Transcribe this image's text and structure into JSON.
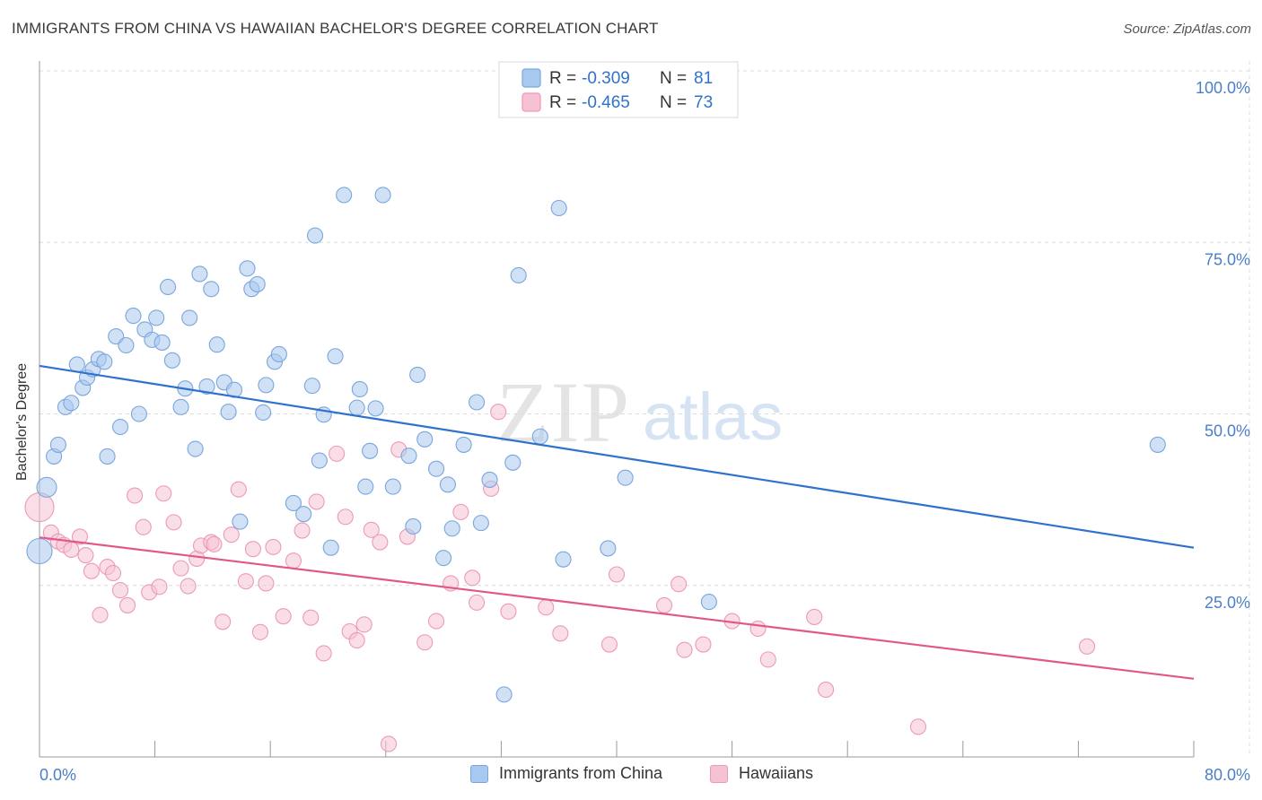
{
  "title": "IMMIGRANTS FROM CHINA VS HAWAIIAN BACHELOR'S DEGREE CORRELATION CHART",
  "source": "Source: ZipAtlas.com",
  "watermark": {
    "zip": "ZIP",
    "atlas": "atlas"
  },
  "colors": {
    "blue_fill": "#a9c8ef",
    "blue_stroke": "#7aa6dd",
    "blue_line": "#2f72cc",
    "pink_fill": "#f6c2d3",
    "pink_stroke": "#ec9ab6",
    "pink_line": "#e0588a",
    "axis_text": "#4a7fc8",
    "grid": "#dcdcdc"
  },
  "legend_top": {
    "rows": [
      {
        "r_label": "R = ",
        "r_value": "-0.309",
        "n_label": "N = ",
        "n_value": "81"
      },
      {
        "r_label": "R = ",
        "r_value": "-0.465",
        "n_label": "N = ",
        "n_value": "73"
      }
    ]
  },
  "chart_data": {
    "type": "scatter",
    "title": "IMMIGRANTS FROM CHINA VS HAWAIIAN BACHELOR'S DEGREE CORRELATION CHART",
    "xlabel": "",
    "ylabel": "Bachelor's Degree",
    "xlim": [
      0,
      80
    ],
    "ylim": [
      0,
      100
    ],
    "x_tick_labels": [
      "0.0%",
      "80.0%"
    ],
    "y_tick_labels": [
      "100.0%",
      "75.0%",
      "50.0%",
      "25.0%"
    ],
    "y_ticks": [
      100,
      75,
      50,
      25
    ],
    "grid": true,
    "legend_position": "top-center and bottom",
    "series": [
      {
        "name": "Immigrants from China",
        "color": "blue",
        "trend": {
          "x": [
            0,
            80
          ],
          "y": [
            57.0,
            30.5
          ]
        },
        "points": [
          [
            0.5,
            39.3
          ],
          [
            0,
            30
          ],
          [
            1,
            43.8
          ],
          [
            1.3,
            45.5
          ],
          [
            1.8,
            51
          ],
          [
            2.2,
            51.6
          ],
          [
            2.6,
            57.2
          ],
          [
            3,
            53.8
          ],
          [
            3.3,
            55.3
          ],
          [
            3.7,
            56.5
          ],
          [
            4.1,
            58
          ],
          [
            4.5,
            57.6
          ],
          [
            4.7,
            43.8
          ],
          [
            5.3,
            61.3
          ],
          [
            5.6,
            48.1
          ],
          [
            6,
            60
          ],
          [
            6.5,
            64.3
          ],
          [
            6.9,
            50
          ],
          [
            7.3,
            62.3
          ],
          [
            7.8,
            60.8
          ],
          [
            8.1,
            64
          ],
          [
            8.5,
            60.4
          ],
          [
            8.9,
            68.5
          ],
          [
            9.2,
            57.8
          ],
          [
            9.8,
            51
          ],
          [
            10.1,
            53.7
          ],
          [
            10.4,
            64
          ],
          [
            10.8,
            44.9
          ],
          [
            11.1,
            70.4
          ],
          [
            11.6,
            54
          ],
          [
            11.9,
            68.2
          ],
          [
            12.3,
            60.1
          ],
          [
            12.8,
            54.6
          ],
          [
            13.1,
            50.3
          ],
          [
            13.5,
            53.5
          ],
          [
            13.9,
            34.3
          ],
          [
            14.4,
            71.2
          ],
          [
            14.7,
            68.2
          ],
          [
            15.1,
            68.9
          ],
          [
            15.5,
            50.2
          ],
          [
            15.7,
            54.2
          ],
          [
            16.3,
            57.6
          ],
          [
            16.6,
            58.7
          ],
          [
            17.6,
            37
          ],
          [
            18.3,
            35.4
          ],
          [
            18.9,
            54.1
          ],
          [
            19.1,
            76
          ],
          [
            19.4,
            43.2
          ],
          [
            19.7,
            49.9
          ],
          [
            20.2,
            30.5
          ],
          [
            20.5,
            58.4
          ],
          [
            21.1,
            81.9
          ],
          [
            22,
            50.9
          ],
          [
            22.2,
            53.6
          ],
          [
            22.6,
            39.4
          ],
          [
            22.9,
            44.6
          ],
          [
            23.3,
            50.8
          ],
          [
            23.8,
            81.9
          ],
          [
            24.5,
            39.4
          ],
          [
            25.6,
            43.9
          ],
          [
            25.9,
            33.6
          ],
          [
            26.2,
            55.7
          ],
          [
            26.7,
            46.3
          ],
          [
            27.5,
            42
          ],
          [
            28,
            29
          ],
          [
            28.3,
            39.7
          ],
          [
            28.6,
            33.3
          ],
          [
            29.4,
            45.5
          ],
          [
            30.3,
            51.7
          ],
          [
            30.6,
            34.1
          ],
          [
            31.2,
            40.4
          ],
          [
            32.2,
            9.1
          ],
          [
            32.8,
            42.9
          ],
          [
            33.2,
            70.2
          ],
          [
            34.7,
            46.7
          ],
          [
            36,
            80
          ],
          [
            36.3,
            28.8
          ],
          [
            39.4,
            30.4
          ],
          [
            40.6,
            40.7
          ],
          [
            46.4,
            22.6
          ],
          [
            77.5,
            45.5
          ]
        ],
        "sizes": {
          "0": 11,
          "1": 14
        }
      },
      {
        "name": "Hawaiians",
        "color": "pink",
        "trend": {
          "x": [
            0,
            80
          ],
          "y": [
            32.0,
            11.4
          ]
        },
        "points": [
          [
            0,
            36.4
          ],
          [
            0.8,
            32.7
          ],
          [
            1.3,
            31.4
          ],
          [
            1.7,
            30.9
          ],
          [
            2.2,
            30.2
          ],
          [
            2.8,
            32.1
          ],
          [
            3.2,
            29.4
          ],
          [
            3.6,
            27.1
          ],
          [
            4.2,
            20.7
          ],
          [
            4.7,
            27.7
          ],
          [
            5.1,
            26.8
          ],
          [
            5.6,
            24.3
          ],
          [
            6.1,
            22.1
          ],
          [
            6.6,
            38.1
          ],
          [
            7.2,
            33.5
          ],
          [
            7.6,
            24
          ],
          [
            8.3,
            24.8
          ],
          [
            8.6,
            38.4
          ],
          [
            9.3,
            34.2
          ],
          [
            9.8,
            27.5
          ],
          [
            10.3,
            24.9
          ],
          [
            10.9,
            28.9
          ],
          [
            11.2,
            30.8
          ],
          [
            11.9,
            31.3
          ],
          [
            12.1,
            31
          ],
          [
            12.7,
            19.7
          ],
          [
            13.3,
            32.4
          ],
          [
            13.8,
            39
          ],
          [
            14.3,
            25.6
          ],
          [
            14.8,
            30.3
          ],
          [
            15.3,
            18.2
          ],
          [
            15.7,
            25.3
          ],
          [
            16.2,
            30.6
          ],
          [
            16.9,
            20.5
          ],
          [
            17.6,
            28.6
          ],
          [
            18.2,
            33
          ],
          [
            18.8,
            20.3
          ],
          [
            19.2,
            37.2
          ],
          [
            19.7,
            15.1
          ],
          [
            20.6,
            44.2
          ],
          [
            21.2,
            35
          ],
          [
            21.5,
            18.3
          ],
          [
            22,
            17
          ],
          [
            22.5,
            19.3
          ],
          [
            23,
            33.1
          ],
          [
            23.6,
            31.3
          ],
          [
            24.2,
            1.9
          ],
          [
            24.9,
            44.8
          ],
          [
            25.5,
            32.1
          ],
          [
            26.7,
            16.7
          ],
          [
            27.5,
            19.8
          ],
          [
            28.5,
            25.3
          ],
          [
            29.2,
            35.7
          ],
          [
            30,
            26.1
          ],
          [
            30.3,
            22.5
          ],
          [
            31.3,
            39.1
          ],
          [
            31.8,
            50.3
          ],
          [
            32.5,
            21.2
          ],
          [
            35.1,
            21.8
          ],
          [
            36.1,
            18
          ],
          [
            39.5,
            16.4
          ],
          [
            40,
            26.6
          ],
          [
            43.3,
            22.1
          ],
          [
            44.3,
            25.2
          ],
          [
            44.7,
            15.6
          ],
          [
            46,
            16.4
          ],
          [
            48,
            19.8
          ],
          [
            49.8,
            18.7
          ],
          [
            50.5,
            14.2
          ],
          [
            53.7,
            20.4
          ],
          [
            54.5,
            9.8
          ],
          [
            60.9,
            4.4
          ],
          [
            72.6,
            16.1
          ]
        ],
        "sizes": {
          "0": 16
        }
      }
    ]
  },
  "legend_bottom": [
    {
      "label": "Immigrants from China",
      "color": "blue"
    },
    {
      "label": "Hawaiians",
      "color": "pink"
    }
  ]
}
